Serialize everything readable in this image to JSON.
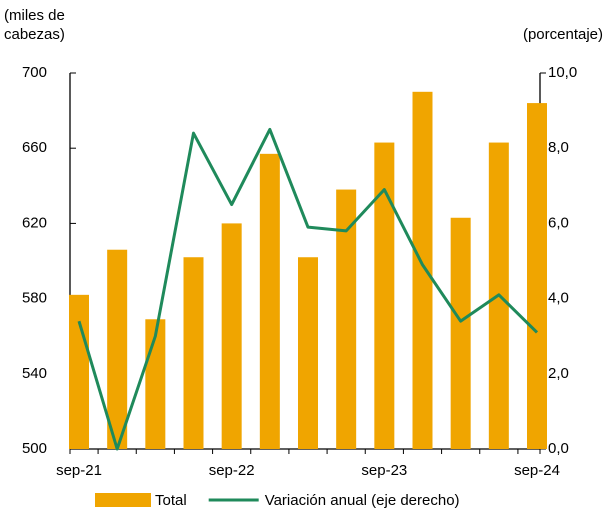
{
  "chart_data": {
    "type": "bar_line",
    "y_label": "(miles de cabezas)",
    "y2_label": "(porcentaje)",
    "categories": [
      "sep-21",
      null,
      null,
      null,
      "sep-22",
      null,
      null,
      null,
      "sep-23",
      null,
      null,
      null,
      "sep-24"
    ],
    "series": [
      {
        "name": "Total",
        "type": "bar",
        "color": "#f0a500",
        "values": [
          582,
          606,
          569,
          602,
          620,
          657,
          602,
          638,
          663,
          690,
          623,
          663,
          684
        ]
      },
      {
        "name": "Variación anual (eje derecho)",
        "type": "line",
        "axis": "y2",
        "color": "#1f8a5b",
        "values": [
          3.4,
          0.0,
          3.0,
          8.4,
          6.5,
          8.5,
          5.9,
          5.8,
          6.9,
          4.9,
          3.4,
          4.1,
          3.1
        ]
      }
    ],
    "ylim": [
      500,
      700
    ],
    "yticks": [
      500,
      540,
      580,
      620,
      660,
      700
    ],
    "y2lim": [
      0,
      10
    ],
    "y2ticks": [
      {
        "value": 0,
        "label": "0,0"
      },
      {
        "value": 2,
        "label": "2,0"
      },
      {
        "value": 4,
        "label": "4,0"
      },
      {
        "value": 6,
        "label": "6,0"
      },
      {
        "value": 8,
        "label": "8,0"
      },
      {
        "value": 10,
        "label": "10,0"
      }
    ]
  }
}
